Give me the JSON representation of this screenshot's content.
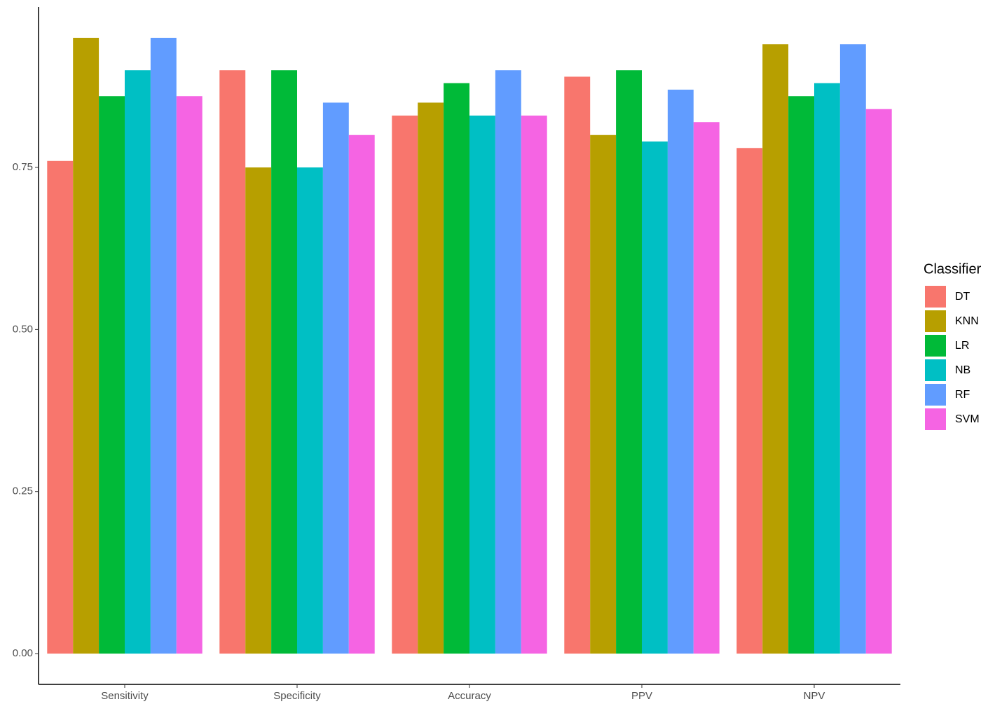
{
  "chart_data": {
    "type": "bar",
    "categories": [
      "Sensitivity",
      "Specificity",
      "Accuracy",
      "PPV",
      "NPV"
    ],
    "legend_title": "Classifier",
    "legend_position": "right",
    "grid": false,
    "series": [
      {
        "name": "DT",
        "color": "#F8766D",
        "values": [
          0.76,
          0.9,
          0.83,
          0.89,
          0.78
        ]
      },
      {
        "name": "KNN",
        "color": "#B79F00",
        "values": [
          0.95,
          0.75,
          0.85,
          0.8,
          0.94
        ]
      },
      {
        "name": "LR",
        "color": "#00BA38",
        "values": [
          0.86,
          0.9,
          0.88,
          0.9,
          0.86
        ]
      },
      {
        "name": "NB",
        "color": "#00BFC4",
        "values": [
          0.9,
          0.75,
          0.83,
          0.79,
          0.88
        ]
      },
      {
        "name": "RF",
        "color": "#619CFF",
        "values": [
          0.95,
          0.85,
          0.9,
          0.87,
          0.94
        ]
      },
      {
        "name": "SVM",
        "color": "#F564E3",
        "values": [
          0.86,
          0.8,
          0.83,
          0.82,
          0.84
        ]
      }
    ],
    "ylim": [
      -0.0475,
      0.9975
    ],
    "yticks": [
      {
        "value": 0,
        "label": "0.00"
      },
      {
        "value": 0.25,
        "label": "0.25"
      },
      {
        "value": 0.5,
        "label": "0.50"
      },
      {
        "value": 0.75,
        "label": "0.75"
      }
    ]
  }
}
